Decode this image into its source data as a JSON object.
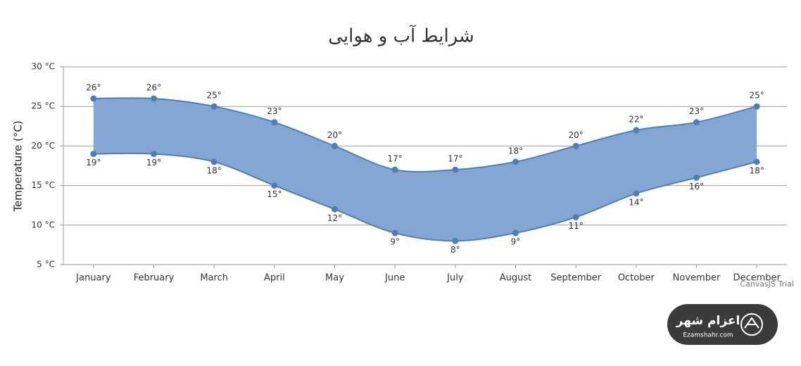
{
  "chart_data": {
    "type": "range_spline_area",
    "title": "شرایط آب و هوایی",
    "y_label": "Temperature (°C)",
    "categories": [
      "January",
      "February",
      "March",
      "April",
      "May",
      "June",
      "July",
      "August",
      "September",
      "October",
      "November",
      "December"
    ],
    "high": [
      26,
      26,
      25,
      23,
      20,
      17,
      17,
      18,
      20,
      22,
      23,
      25
    ],
    "high_labels": [
      "26°",
      "26°",
      "25°",
      "23°",
      "20°",
      "17°",
      "17°",
      "18°",
      "20°",
      "22°",
      "23°",
      "25°"
    ],
    "low": [
      19,
      19,
      18,
      15,
      12,
      9,
      8,
      9,
      11,
      14,
      16,
      18
    ],
    "low_labels": [
      "19°",
      "19°",
      "18°",
      "15°",
      "12°",
      "9°",
      "8°",
      "9°",
      "11°",
      "14°",
      "16°",
      "18°"
    ],
    "color": "#4f7db5",
    "fill": "#84a6d2",
    "ylim": [
      5,
      30
    ],
    "yticks": [
      {
        "value": 5,
        "label": "5 °C"
      },
      {
        "value": 10,
        "label": "10 °C"
      },
      {
        "value": 15,
        "label": "15 °C"
      },
      {
        "value": 20,
        "label": "20 °C"
      },
      {
        "value": 25,
        "label": "25 °C"
      },
      {
        "value": 30,
        "label": "30 °C"
      }
    ],
    "grid": true,
    "credit": "CanvasJS Trial"
  },
  "watermark": {
    "title": "اعزام شهر",
    "site": "Ezamshahr.com"
  }
}
